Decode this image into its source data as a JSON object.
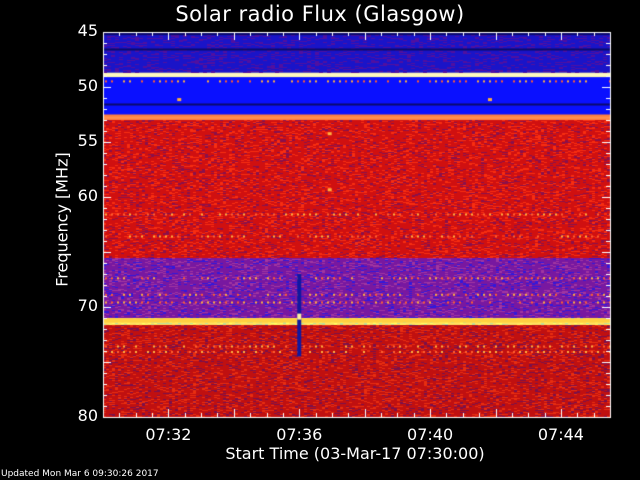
{
  "chart_data": {
    "type": "heatmap",
    "title": "Solar radio Flux (Glasgow)",
    "ylabel": "Frequency [MHz]",
    "xlabel": "Start Time (03-Mar-17 07:30:00)",
    "ylim": [
      45,
      80
    ],
    "y_inverted": true,
    "y_ticks": [
      {
        "value": 45,
        "label": "45"
      },
      {
        "value": 50,
        "label": "50"
      },
      {
        "value": 55,
        "label": "55"
      },
      {
        "value": 60,
        "label": "60"
      },
      {
        "value": 70,
        "label": "70"
      },
      {
        "value": 80,
        "label": "80"
      }
    ],
    "x_range_minutes": [
      0,
      15.5
    ],
    "x_ticks": [
      {
        "value": 2,
        "label": "07:32"
      },
      {
        "value": 6,
        "label": "07:36"
      },
      {
        "value": 10,
        "label": "07:40"
      },
      {
        "value": 14,
        "label": "07:44"
      }
    ],
    "colormap": "blue-red-yellow-white",
    "bands": [
      {
        "from": 45,
        "to": 48.7,
        "color": "#1a14c8"
      },
      {
        "from": 48.7,
        "to": 49.1,
        "color": "#ffffb0"
      },
      {
        "from": 49.1,
        "to": 52.5,
        "color": "#0a10ff"
      },
      {
        "from": 52.5,
        "to": 53.0,
        "color": "#ff8040"
      },
      {
        "from": 53.0,
        "to": 65.5,
        "color": "#d01010"
      },
      {
        "from": 65.5,
        "to": 71.0,
        "color": "#7818a0"
      },
      {
        "from": 71.0,
        "to": 71.6,
        "color": "#ffe060"
      },
      {
        "from": 71.6,
        "to": 80,
        "color": "#c01010"
      }
    ],
    "burst": {
      "time": 6,
      "freq_from": 67,
      "freq_to": 74.5
    }
  },
  "footer": {
    "updated": "Updated Mon Mar  6 09:30:26 2017"
  }
}
